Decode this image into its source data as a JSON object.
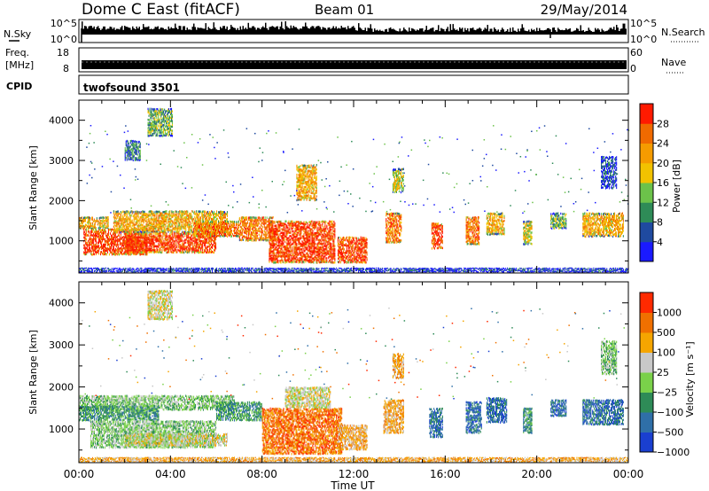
{
  "header": {
    "station": "Dome C East (fitACF)",
    "beam": "Beam 01",
    "date": "29/May/2014"
  },
  "strips": {
    "nsky": {
      "label": "N.Sky",
      "ticks_left": [
        "10^5",
        "10^0"
      ],
      "ticks_right": [
        "10^5",
        "10^0"
      ],
      "right_label": "N.Search"
    },
    "freq": {
      "label_line1": "Freq.",
      "label_line2": "[MHz]",
      "ticks_left": [
        "18",
        "8"
      ],
      "ticks_right": [
        "60",
        "0"
      ],
      "right_label": "Nave"
    },
    "cpid": {
      "label": "CPID",
      "program": "twofsound 3501"
    }
  },
  "chart_data": [
    {
      "type": "heatmap",
      "name": "power",
      "ylabel": "Slant Range [km]",
      "xlabel": "",
      "x_ticks": [
        "00:00",
        "04:00",
        "08:00",
        "12:00",
        "16:00",
        "20:00",
        "00:00"
      ],
      "y_ticks": [
        1000,
        2000,
        3000,
        4000
      ],
      "ylim": [
        200,
        4500
      ],
      "xlim_hours": [
        0,
        24
      ],
      "colorbar": {
        "label": "Power [dB]",
        "ticks": [
          "4",
          "8",
          "12",
          "16",
          "20",
          "24",
          "28"
        ],
        "range": [
          0,
          30
        ],
        "colors": [
          "#1a1aff",
          "#1f4aa0",
          "#2e8b57",
          "#6cc24a",
          "#f2c200",
          "#f59b00",
          "#f06a00",
          "#ff1a00"
        ]
      },
      "blobs": [
        {
          "t0": 0.0,
          "t1": 1.3,
          "r0": 1300,
          "r1": 1600,
          "v": 20
        },
        {
          "t0": 0.2,
          "t1": 3.0,
          "r0": 650,
          "r1": 1300,
          "v": 28
        },
        {
          "t0": 1.5,
          "t1": 6.5,
          "r0": 1200,
          "r1": 1750,
          "v": 22
        },
        {
          "t0": 2.0,
          "t1": 6.0,
          "r0": 700,
          "r1": 1200,
          "v": 28
        },
        {
          "t0": 5.0,
          "t1": 7.0,
          "r0": 1100,
          "r1": 1500,
          "v": 24
        },
        {
          "t0": 7.0,
          "t1": 8.5,
          "r0": 1000,
          "r1": 1600,
          "v": 27
        },
        {
          "t0": 8.3,
          "t1": 11.2,
          "r0": 450,
          "r1": 1500,
          "v": 28
        },
        {
          "t0": 11.3,
          "t1": 12.6,
          "r0": 450,
          "r1": 1100,
          "v": 28
        },
        {
          "t0": 13.4,
          "t1": 14.1,
          "r0": 950,
          "r1": 1700,
          "v": 27
        },
        {
          "t0": 15.4,
          "t1": 15.9,
          "r0": 800,
          "r1": 1450,
          "v": 28
        },
        {
          "t0": 16.9,
          "t1": 17.5,
          "r0": 900,
          "r1": 1600,
          "v": 26
        },
        {
          "t0": 17.8,
          "t1": 18.6,
          "r0": 1150,
          "r1": 1700,
          "v": 22
        },
        {
          "t0": 19.4,
          "t1": 19.8,
          "r0": 900,
          "r1": 1500,
          "v": 18
        },
        {
          "t0": 20.6,
          "t1": 21.3,
          "r0": 1300,
          "r1": 1700,
          "v": 14
        },
        {
          "t0": 22.0,
          "t1": 23.8,
          "r0": 1100,
          "r1": 1700,
          "v": 22
        },
        {
          "t0": 3.0,
          "t1": 4.1,
          "r0": 3600,
          "r1": 4300,
          "v": 11
        },
        {
          "t0": 2.0,
          "t1": 2.7,
          "r0": 3000,
          "r1": 3500,
          "v": 9
        },
        {
          "t0": 9.5,
          "t1": 10.4,
          "r0": 2000,
          "r1": 2900,
          "v": 20
        },
        {
          "t0": 13.7,
          "t1": 14.2,
          "r0": 2200,
          "r1": 2800,
          "v": 18
        },
        {
          "t0": 22.8,
          "t1": 23.5,
          "r0": 2300,
          "r1": 3100,
          "v": 6
        },
        {
          "t0": 0.0,
          "t1": 24.0,
          "r0": 220,
          "r1": 330,
          "v": 5
        }
      ]
    },
    {
      "type": "heatmap",
      "name": "velocity",
      "ylabel": "Slant Range [km]",
      "xlabel": "Time UT",
      "x_ticks": [
        "00:00",
        "04:00",
        "08:00",
        "12:00",
        "16:00",
        "20:00",
        "00:00"
      ],
      "y_ticks": [
        1000,
        2000,
        3000,
        4000
      ],
      "ylim": [
        200,
        4500
      ],
      "xlim_hours": [
        0,
        24
      ],
      "colorbar": {
        "label": "Velocity [m s⁻¹]",
        "ticks": [
          "1000",
          "500",
          "100",
          "25",
          "−25",
          "−100",
          "−500",
          "−1000"
        ],
        "colors": [
          "#1a3fd0",
          "#2f6fa8",
          "#2e8b57",
          "#7ad14a",
          "#c8c8c8",
          "#f5a500",
          "#f07000",
          "#ff2a00"
        ]
      },
      "blobs": [
        {
          "t0": 0.0,
          "t1": 6.8,
          "r0": 1450,
          "r1": 1800,
          "v": 3
        },
        {
          "t0": 0.0,
          "t1": 3.5,
          "r0": 1200,
          "r1": 1550,
          "v": 2
        },
        {
          "t0": 0.5,
          "t1": 6.0,
          "r0": 550,
          "r1": 1200,
          "v": 3
        },
        {
          "t0": 2.0,
          "t1": 6.5,
          "r0": 600,
          "r1": 900,
          "v": 4
        },
        {
          "t0": 6.0,
          "t1": 8.0,
          "r0": 1200,
          "r1": 1650,
          "v": 2
        },
        {
          "t0": 8.0,
          "t1": 11.5,
          "r0": 400,
          "r1": 1500,
          "v": 6
        },
        {
          "t0": 9.0,
          "t1": 11.0,
          "r0": 1500,
          "r1": 2000,
          "v": 4
        },
        {
          "t0": 11.3,
          "t1": 12.6,
          "r0": 500,
          "r1": 1100,
          "v": 5
        },
        {
          "t0": 13.3,
          "t1": 14.2,
          "r0": 900,
          "r1": 1700,
          "v": 5
        },
        {
          "t0": 15.3,
          "t1": 15.9,
          "r0": 800,
          "r1": 1500,
          "v": 1
        },
        {
          "t0": 16.9,
          "t1": 17.6,
          "r0": 900,
          "r1": 1650,
          "v": 1
        },
        {
          "t0": 17.8,
          "t1": 18.7,
          "r0": 1150,
          "r1": 1750,
          "v": 1
        },
        {
          "t0": 19.4,
          "t1": 19.8,
          "r0": 900,
          "r1": 1500,
          "v": 2
        },
        {
          "t0": 20.6,
          "t1": 21.3,
          "r0": 1300,
          "r1": 1700,
          "v": 1
        },
        {
          "t0": 22.0,
          "t1": 23.8,
          "r0": 1100,
          "r1": 1700,
          "v": 1
        },
        {
          "t0": 3.0,
          "t1": 4.1,
          "r0": 3600,
          "r1": 4300,
          "v": 4
        },
        {
          "t0": 13.7,
          "t1": 14.2,
          "r0": 2200,
          "r1": 2800,
          "v": 5
        },
        {
          "t0": 22.8,
          "t1": 23.5,
          "r0": 2300,
          "r1": 3100,
          "v": 3
        },
        {
          "t0": 0.0,
          "t1": 24.0,
          "r0": 220,
          "r1": 330,
          "v": 5
        }
      ]
    }
  ]
}
